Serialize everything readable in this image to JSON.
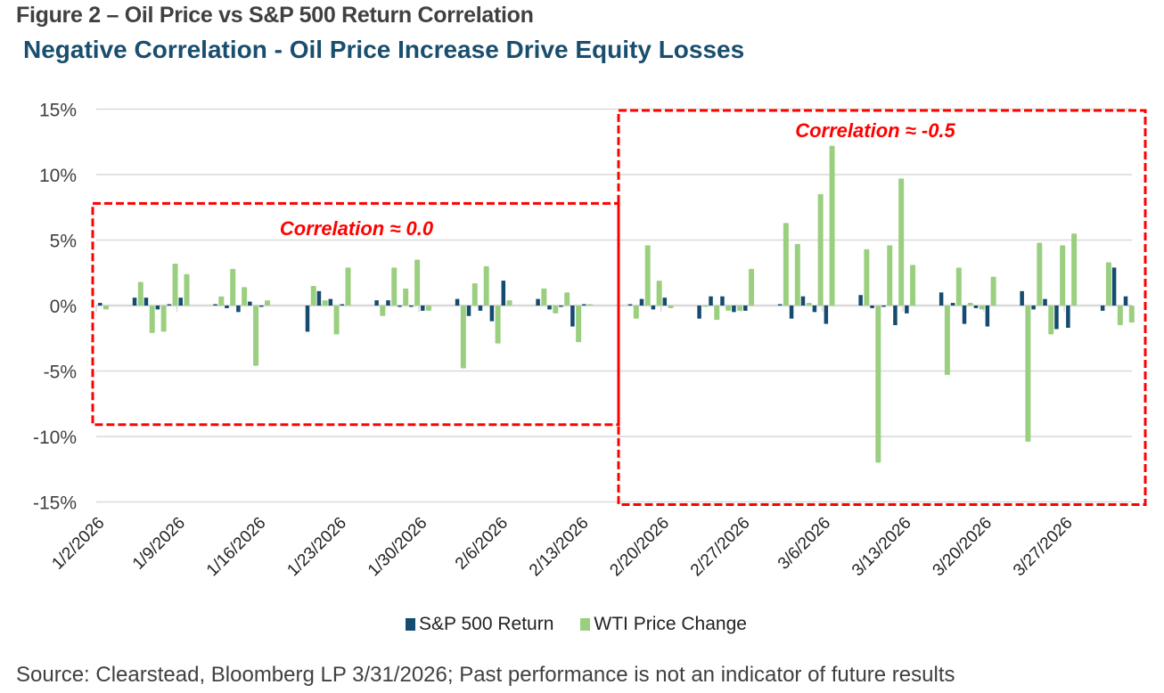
{
  "figure_title": "Figure 2 – Oil Price vs S&P 500 Return Correlation",
  "subtitle": "Negative Correlation - Oil Price Increase Drive Equity Losses",
  "source": "Source: Clearstead, Bloomberg LP 3/31/2026; Past performance is not an indicator of future results",
  "colors": {
    "sp500": "#154b6e",
    "wti": "#9bcf80",
    "annotation": "#ff0000",
    "grid": "#d9d9d9",
    "title": "#404040",
    "subtitle": "#1a4e6e"
  },
  "chart_data": {
    "type": "bar",
    "title": "Negative Correlation - Oil Price Increase Drive Equity Losses",
    "xlabel": "",
    "ylabel": "",
    "ylim": [
      -15,
      15
    ],
    "y_ticks": [
      15,
      10,
      5,
      0,
      -5,
      -10,
      -15
    ],
    "y_tick_labels": [
      "15%",
      "10%",
      "5%",
      "0%",
      "-5%",
      "-10%",
      "-15%"
    ],
    "x_tick_labels": [
      "1/2/2026",
      "1/9/2026",
      "1/16/2026",
      "1/23/2026",
      "1/30/2026",
      "2/6/2026",
      "2/13/2026",
      "2/20/2026",
      "2/27/2026",
      "3/6/2026",
      "3/13/2026",
      "3/20/2026",
      "3/27/2026"
    ],
    "x_range_days": [
      "1/2/2026",
      "4/2/2026"
    ],
    "grid": true,
    "legend_position": "bottom",
    "categories": [
      "1/2",
      "1/5",
      "1/6",
      "1/7",
      "1/8",
      "1/9",
      "1/12",
      "1/13",
      "1/14",
      "1/15",
      "1/16",
      "1/20",
      "1/21",
      "1/22",
      "1/23",
      "1/26",
      "1/27",
      "1/28",
      "1/29",
      "1/30",
      "2/2",
      "2/3",
      "2/4",
      "2/5",
      "2/6",
      "2/9",
      "2/10",
      "2/11",
      "2/12",
      "2/13",
      "2/17",
      "2/18",
      "2/19",
      "2/20",
      "2/23",
      "2/24",
      "2/25",
      "2/26",
      "2/27",
      "3/2",
      "3/3",
      "3/4",
      "3/5",
      "3/6",
      "3/9",
      "3/10",
      "3/11",
      "3/12",
      "3/13",
      "3/16",
      "3/17",
      "3/18",
      "3/19",
      "3/20",
      "3/23",
      "3/24",
      "3/25",
      "3/26",
      "3/27",
      "3/30",
      "3/31",
      "4/1"
    ],
    "day_offsets": [
      0,
      3,
      4,
      5,
      6,
      7,
      10,
      11,
      12,
      13,
      14,
      18,
      19,
      20,
      21,
      24,
      25,
      26,
      27,
      28,
      31,
      32,
      33,
      34,
      35,
      38,
      39,
      40,
      41,
      42,
      46,
      47,
      48,
      49,
      52,
      53,
      54,
      55,
      56,
      59,
      60,
      61,
      62,
      63,
      66,
      67,
      68,
      69,
      70,
      73,
      74,
      75,
      76,
      77,
      80,
      81,
      82,
      83,
      84,
      87,
      88,
      89
    ],
    "series": [
      {
        "name": "S&P 500 Return",
        "values": [
          0.2,
          0.6,
          0.6,
          -0.3,
          0.1,
          0.6,
          0.1,
          -0.2,
          -0.5,
          0.3,
          -0.1,
          -2.0,
          1.1,
          0.5,
          0.1,
          0.4,
          0.4,
          -0.1,
          -0.1,
          -0.4,
          0.5,
          -0.8,
          -0.4,
          -1.2,
          1.9,
          0.5,
          -0.3,
          -0.1,
          -1.6,
          0.1,
          0.1,
          0.5,
          -0.3,
          0.6,
          -1.0,
          0.7,
          0.7,
          -0.5,
          -0.4,
          0.1,
          -1.0,
          0.7,
          -0.5,
          -1.4,
          0.8,
          -0.2,
          -0.1,
          -1.5,
          -0.6,
          1.0,
          0.2,
          -1.4,
          -0.2,
          -1.6,
          1.1,
          -0.3,
          0.5,
          -1.8,
          -1.7,
          -0.4,
          2.9,
          0.7
        ]
      },
      {
        "name": "WTI Price Change",
        "values": [
          -0.3,
          1.8,
          -2.1,
          -2.0,
          3.2,
          2.4,
          0.7,
          2.8,
          1.4,
          -4.6,
          0.4,
          1.5,
          0.4,
          -2.2,
          2.9,
          -0.8,
          2.9,
          1.3,
          3.5,
          -0.4,
          -4.8,
          1.7,
          3.0,
          -2.9,
          0.4,
          1.3,
          -0.6,
          1.0,
          -2.8,
          0.1,
          -1.0,
          4.6,
          1.9,
          -0.2,
          -0.1,
          -1.1,
          -0.4,
          -0.4,
          2.8,
          6.3,
          4.7,
          0.2,
          8.5,
          12.2,
          4.3,
          -12.0,
          4.6,
          9.7,
          3.1,
          -5.3,
          2.9,
          0.2,
          -0.3,
          2.2,
          -10.4,
          4.8,
          -2.2,
          4.6,
          5.5,
          3.3,
          -1.5,
          -1.3
        ]
      }
    ],
    "annotations": [
      {
        "text": "Correlation ≈ 0.0",
        "period": [
          "1/2/2026",
          "2/13/2026"
        ],
        "y_range": [
          -9.1,
          7.8
        ]
      },
      {
        "text": "Correlation ≈ -0.5",
        "period": [
          "2/17/2026",
          "4/1/2026"
        ],
        "y_range": [
          -15.2,
          14.9
        ]
      }
    ]
  },
  "legend": [
    {
      "label": "S&P 500 Return",
      "color": "#154b6e"
    },
    {
      "label": "WTI Price Change",
      "color": "#9bcf80"
    }
  ]
}
